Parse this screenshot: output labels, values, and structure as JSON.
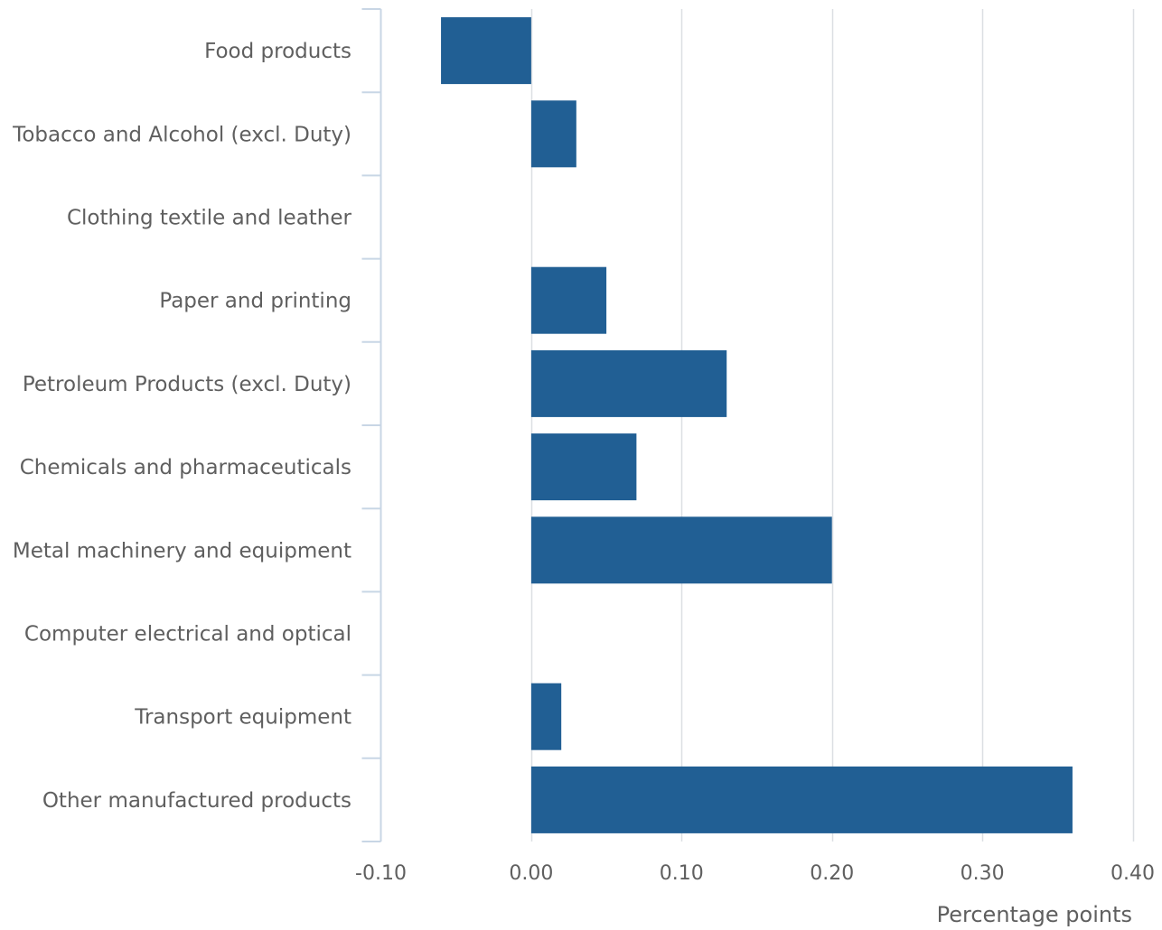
{
  "chart_data": {
    "type": "bar",
    "orientation": "horizontal",
    "title": "",
    "xlabel": "Percentage points",
    "ylabel": "",
    "xlim": [
      -0.1,
      0.4
    ],
    "xticks": [
      -0.1,
      0.0,
      0.1,
      0.2,
      0.3,
      0.4
    ],
    "xtick_labels": [
      "-0.10",
      "0.00",
      "0.10",
      "0.20",
      "0.30",
      "0.40"
    ],
    "grid": "vertical",
    "legend": "none",
    "categories": [
      "Food products",
      "Tobacco and Alcohol (excl. Duty)",
      "Clothing textile and leather",
      "Paper and printing",
      "Petroleum Products (excl. Duty)",
      "Chemicals and pharmaceuticals",
      "Metal machinery and equipment",
      "Computer electrical and optical",
      "Transport equipment",
      "Other manufactured products"
    ],
    "values": [
      -0.06,
      0.03,
      0.0,
      0.05,
      0.13,
      0.07,
      0.2,
      0.0,
      0.02,
      0.36
    ],
    "colors": {
      "bar": "#215f94",
      "grid": "#dcdfe3",
      "axis": "#c8d6e5",
      "text": "#5f5f5f"
    }
  }
}
